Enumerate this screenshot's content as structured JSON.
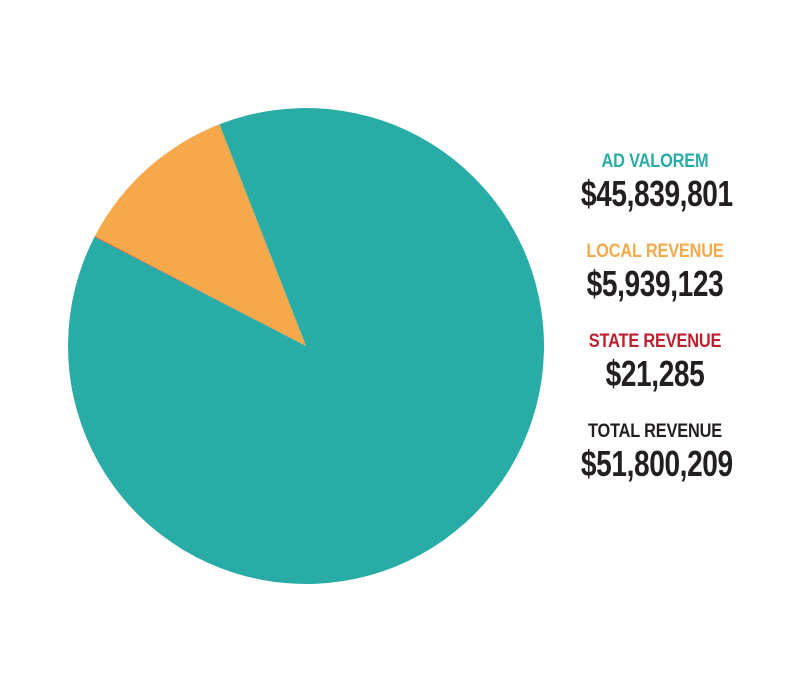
{
  "chart_data": {
    "type": "pie",
    "slices": [
      {
        "label": "AD VALOREM",
        "value": 45839801,
        "display": "$45,839,801",
        "color": "#2aaca6"
      },
      {
        "label": "LOCAL REVENUE",
        "value": 5939123,
        "display": "$5,939,123",
        "color": "#f5a94a"
      },
      {
        "label": "STATE REVENUE",
        "value": 21285,
        "display": "$21,285",
        "color": "#be1e2d"
      }
    ],
    "total": {
      "label": "TOTAL REVENUE",
      "value": 51800209,
      "display": "$51,800,209",
      "color": "#231f20"
    },
    "legend": "right"
  }
}
